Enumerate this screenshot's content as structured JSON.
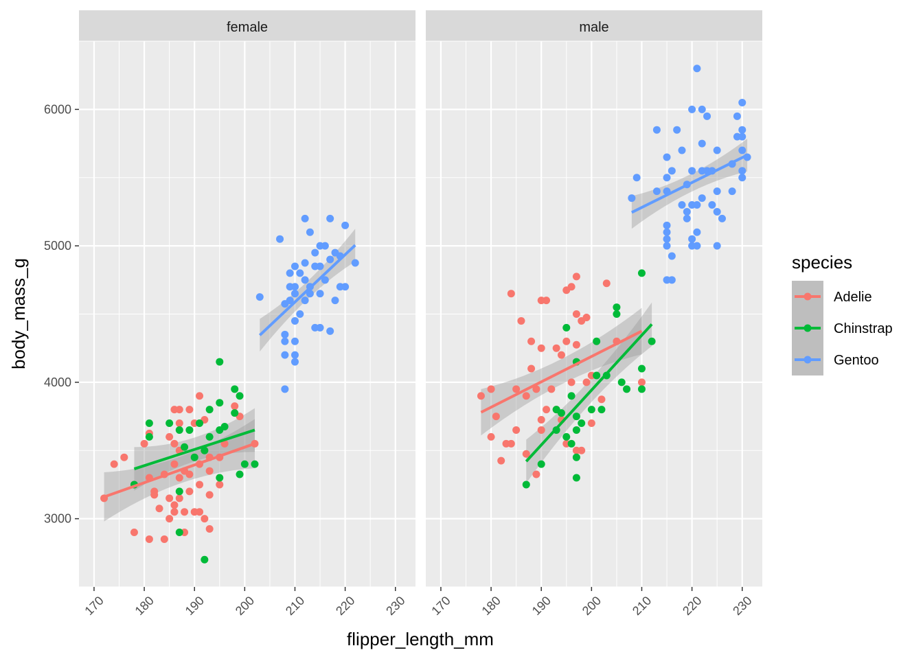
{
  "chart_data": {
    "type": "scatter",
    "facet_var": "sex",
    "panels": [
      "female",
      "male"
    ],
    "xlabel": "flipper_length_mm",
    "ylabel": "body_mass_g",
    "xlim": [
      167,
      234
    ],
    "ylim": [
      2500,
      6500
    ],
    "xticks": [
      170,
      180,
      190,
      200,
      210,
      220,
      230
    ],
    "yticks": [
      3000,
      4000,
      5000,
      6000
    ],
    "grid": true,
    "legend": {
      "title": "species",
      "placement": "right"
    },
    "series": [
      {
        "name": "Adelie",
        "color": "#F8766D",
        "points": {
          "female": [
            [
              172,
              3150
            ],
            [
              174,
              3400
            ],
            [
              176,
              3450
            ],
            [
              178,
              2900
            ],
            [
              178,
              3250
            ],
            [
              180,
              3550
            ],
            [
              181,
              2850
            ],
            [
              181,
              3300
            ],
            [
              181,
              3625
            ],
            [
              182,
              3175
            ],
            [
              182,
              3200
            ],
            [
              183,
              3075
            ],
            [
              184,
              2850
            ],
            [
              184,
              3325
            ],
            [
              185,
              3000
            ],
            [
              185,
              3150
            ],
            [
              185,
              3600
            ],
            [
              186,
              3050
            ],
            [
              186,
              3100
            ],
            [
              186,
              3400
            ],
            [
              186,
              3550
            ],
            [
              186,
              3800
            ],
            [
              187,
              3150
            ],
            [
              187,
              3300
            ],
            [
              187,
              3500
            ],
            [
              187,
              3700
            ],
            [
              187,
              3800
            ],
            [
              188,
              2900
            ],
            [
              188,
              3050
            ],
            [
              188,
              3350
            ],
            [
              189,
              3200
            ],
            [
              189,
              3325
            ],
            [
              189,
              3800
            ],
            [
              190,
              3050
            ],
            [
              190,
              3450
            ],
            [
              190,
              3700
            ],
            [
              191,
              3050
            ],
            [
              191,
              3250
            ],
            [
              191,
              3400
            ],
            [
              191,
              3900
            ],
            [
              192,
              3000
            ],
            [
              192,
              3500
            ],
            [
              192,
              3725
            ],
            [
              193,
              2925
            ],
            [
              193,
              3175
            ],
            [
              193,
              3350
            ],
            [
              193,
              3450
            ],
            [
              195,
              3250
            ],
            [
              195,
              3450
            ],
            [
              196,
              3550
            ],
            [
              198,
              3825
            ],
            [
              199,
              3750
            ],
            [
              202,
              3550
            ]
          ],
          "male": [
            [
              178,
              3900
            ],
            [
              180,
              3600
            ],
            [
              180,
              3950
            ],
            [
              181,
              3750
            ],
            [
              182,
              3425
            ],
            [
              183,
              3550
            ],
            [
              184,
              3550
            ],
            [
              184,
              4650
            ],
            [
              185,
              3650
            ],
            [
              185,
              3950
            ],
            [
              186,
              4450
            ],
            [
              187,
              3475
            ],
            [
              187,
              3900
            ],
            [
              188,
              4100
            ],
            [
              188,
              4300
            ],
            [
              189,
              3325
            ],
            [
              189,
              3950
            ],
            [
              190,
              3650
            ],
            [
              190,
              3725
            ],
            [
              190,
              4250
            ],
            [
              190,
              4600
            ],
            [
              191,
              3800
            ],
            [
              191,
              4600
            ],
            [
              192,
              3950
            ],
            [
              193,
              3800
            ],
            [
              193,
              4250
            ],
            [
              194,
              3725
            ],
            [
              194,
              4200
            ],
            [
              195,
              3550
            ],
            [
              195,
              4675
            ],
            [
              195,
              4300
            ],
            [
              196,
              4000
            ],
            [
              196,
              4700
            ],
            [
              197,
              4275
            ],
            [
              197,
              4500
            ],
            [
              197,
              3500
            ],
            [
              197,
              4775
            ],
            [
              198,
              3500
            ],
            [
              198,
              4450
            ],
            [
              199,
              4000
            ],
            [
              199,
              4475
            ],
            [
              200,
              3700
            ],
            [
              200,
              4050
            ],
            [
              202,
              3875
            ],
            [
              203,
              4725
            ],
            [
              205,
              4300
            ],
            [
              210,
              4000
            ]
          ]
        },
        "fit": {
          "female": {
            "x": [
              172,
              202
            ],
            "y": [
              3160,
              3550
            ],
            "se": 180
          },
          "male": {
            "x": [
              178,
              210
            ],
            "y": [
              3780,
              4375
            ],
            "se": 170
          }
        }
      },
      {
        "name": "Chinstrap",
        "color": "#00BA38",
        "points": {
          "female": [
            [
              178,
              3250
            ],
            [
              181,
              3600
            ],
            [
              181,
              3700
            ],
            [
              185,
              3700
            ],
            [
              187,
              2900
            ],
            [
              187,
              3200
            ],
            [
              187,
              3650
            ],
            [
              188,
              3525
            ],
            [
              189,
              3650
            ],
            [
              190,
              3450
            ],
            [
              191,
              3700
            ],
            [
              192,
              2700
            ],
            [
              192,
              3500
            ],
            [
              193,
              3600
            ],
            [
              193,
              3800
            ],
            [
              195,
              3300
            ],
            [
              195,
              3650
            ],
            [
              195,
              3850
            ],
            [
              195,
              4150
            ],
            [
              196,
              3675
            ],
            [
              198,
              3775
            ],
            [
              198,
              3950
            ],
            [
              199,
              3325
            ],
            [
              199,
              3900
            ],
            [
              200,
              3400
            ],
            [
              202,
              3400
            ]
          ],
          "male": [
            [
              187,
              3250
            ],
            [
              190,
              3400
            ],
            [
              193,
              3650
            ],
            [
              193,
              3800
            ],
            [
              194,
              3775
            ],
            [
              195,
              3600
            ],
            [
              195,
              4400
            ],
            [
              196,
              3550
            ],
            [
              196,
              3900
            ],
            [
              197,
              3300
            ],
            [
              197,
              3450
            ],
            [
              197,
              3650
            ],
            [
              197,
              3750
            ],
            [
              197,
              4150
            ],
            [
              198,
              3700
            ],
            [
              200,
              3800
            ],
            [
              201,
              4300
            ],
            [
              201,
              4050
            ],
            [
              202,
              3800
            ],
            [
              203,
              4050
            ],
            [
              205,
              4550
            ],
            [
              205,
              4500
            ],
            [
              206,
              4000
            ],
            [
              207,
              3950
            ],
            [
              210,
              3950
            ],
            [
              210,
              4100
            ],
            [
              210,
              4800
            ],
            [
              212,
              4300
            ]
          ]
        },
        "fit": {
          "female": {
            "x": [
              178,
              202
            ],
            "y": [
              3365,
              3650
            ],
            "se": 160
          },
          "male": {
            "x": [
              187,
              212
            ],
            "y": [
              3420,
              4425
            ],
            "se": 160
          }
        }
      },
      {
        "name": "Gentoo",
        "color": "#619CFF",
        "points": {
          "female": [
            [
              203,
              4625
            ],
            [
              207,
              5050
            ],
            [
              208,
              3950
            ],
            [
              208,
              4200
            ],
            [
              208,
              4300
            ],
            [
              208,
              4350
            ],
            [
              208,
              4575
            ],
            [
              209,
              4600
            ],
            [
              209,
              4700
            ],
            [
              209,
              4800
            ],
            [
              210,
              4150
            ],
            [
              210,
              4200
            ],
            [
              210,
              4300
            ],
            [
              210,
              4450
            ],
            [
              210,
              4650
            ],
            [
              210,
              4700
            ],
            [
              210,
              4850
            ],
            [
              211,
              4500
            ],
            [
              211,
              4800
            ],
            [
              212,
              4600
            ],
            [
              212,
              4750
            ],
            [
              212,
              4875
            ],
            [
              212,
              5200
            ],
            [
              213,
              4650
            ],
            [
              213,
              4700
            ],
            [
              213,
              5100
            ],
            [
              214,
              4400
            ],
            [
              214,
              4850
            ],
            [
              214,
              4950
            ],
            [
              215,
              4400
            ],
            [
              215,
              4650
            ],
            [
              215,
              4850
            ],
            [
              215,
              5000
            ],
            [
              216,
              4750
            ],
            [
              216,
              5000
            ],
            [
              217,
              4375
            ],
            [
              217,
              4900
            ],
            [
              217,
              5200
            ],
            [
              218,
              4600
            ],
            [
              218,
              4950
            ],
            [
              219,
              4700
            ],
            [
              219,
              4925
            ],
            [
              220,
              4700
            ],
            [
              220,
              5150
            ],
            [
              222,
              4875
            ]
          ],
          "male": [
            [
              208,
              5350
            ],
            [
              209,
              5500
            ],
            [
              213,
              5400
            ],
            [
              213,
              5850
            ],
            [
              215,
              4750
            ],
            [
              215,
              5000
            ],
            [
              215,
              5050
            ],
            [
              215,
              5100
            ],
            [
              215,
              5150
            ],
            [
              215,
              5400
            ],
            [
              215,
              5500
            ],
            [
              215,
              5650
            ],
            [
              216,
              4750
            ],
            [
              216,
              4925
            ],
            [
              216,
              5550
            ],
            [
              217,
              5850
            ],
            [
              218,
              5300
            ],
            [
              218,
              5700
            ],
            [
              219,
              5200
            ],
            [
              219,
              5250
            ],
            [
              219,
              5450
            ],
            [
              220,
              5000
            ],
            [
              220,
              5050
            ],
            [
              220,
              5300
            ],
            [
              220,
              5550
            ],
            [
              220,
              6000
            ],
            [
              221,
              5000
            ],
            [
              221,
              5100
            ],
            [
              221,
              5300
            ],
            [
              221,
              6300
            ],
            [
              222,
              5350
            ],
            [
              222,
              5550
            ],
            [
              222,
              5750
            ],
            [
              222,
              6000
            ],
            [
              223,
              5550
            ],
            [
              223,
              5950
            ],
            [
              224,
              5300
            ],
            [
              224,
              5550
            ],
            [
              225,
              5000
            ],
            [
              225,
              5250
            ],
            [
              225,
              5400
            ],
            [
              225,
              5700
            ],
            [
              226,
              5200
            ],
            [
              228,
              5400
            ],
            [
              228,
              5600
            ],
            [
              229,
              5800
            ],
            [
              229,
              5950
            ],
            [
              230,
              5500
            ],
            [
              230,
              5550
            ],
            [
              230,
              5700
            ],
            [
              230,
              5800
            ],
            [
              230,
              5850
            ],
            [
              230,
              6050
            ],
            [
              231,
              5650
            ]
          ]
        },
        "fit": {
          "female": {
            "x": [
              203,
              222
            ],
            "y": [
              4345,
              5005
            ],
            "se": 120
          },
          "male": {
            "x": [
              208,
              231
            ],
            "y": [
              5245,
              5665
            ],
            "se": 120
          }
        }
      }
    ]
  }
}
